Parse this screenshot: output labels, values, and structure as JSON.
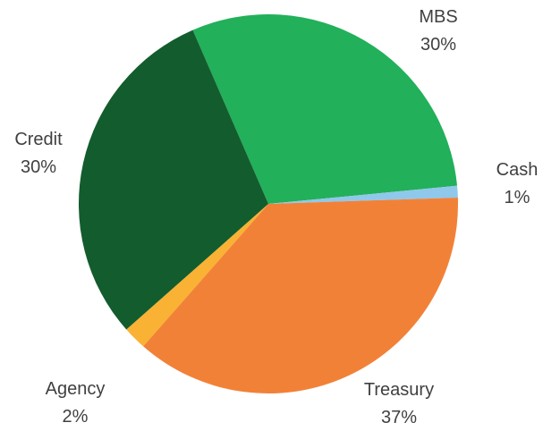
{
  "chart_data": {
    "type": "pie",
    "title": "",
    "legend": "none",
    "categories": [
      "MBS",
      "Cash",
      "Treasury",
      "Agency",
      "Credit"
    ],
    "values": [
      30,
      1,
      37,
      2,
      30
    ],
    "value_labels": [
      "30%",
      "1%",
      "37%",
      "2%",
      "30%"
    ],
    "colors": [
      "#22b05a",
      "#8fc8ea",
      "#f28138",
      "#f9b233",
      "#135c2d"
    ],
    "slices": [
      {
        "name": "MBS",
        "value": 30,
        "label": "30%",
        "color": "#22b05a"
      },
      {
        "name": "Cash",
        "value": 1,
        "label": "1%",
        "color": "#8fc8ea"
      },
      {
        "name": "Treasury",
        "value": 37,
        "label": "37%",
        "color": "#f28138"
      },
      {
        "name": "Agency",
        "value": 2,
        "label": "2%",
        "color": "#f9b233"
      },
      {
        "name": "Credit",
        "value": 30,
        "label": "30%",
        "color": "#135c2d"
      }
    ]
  }
}
